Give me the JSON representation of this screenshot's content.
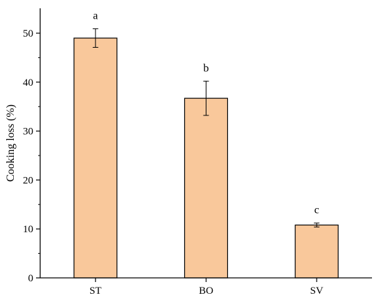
{
  "chart_data": {
    "type": "bar",
    "title": "",
    "xlabel": "",
    "ylabel": "Cooking loss (%)",
    "categories": [
      "ST",
      "BO",
      "SV"
    ],
    "values": [
      49.0,
      36.7,
      10.8
    ],
    "errors": [
      1.9,
      3.5,
      0.4
    ],
    "significance_labels": [
      "a",
      "b",
      "c"
    ],
    "ylim": [
      0,
      55
    ],
    "yticks": [
      0,
      10,
      20,
      30,
      40,
      50
    ],
    "grid": false,
    "bar_color": "#F9C89B",
    "edge_color": "#000000"
  }
}
